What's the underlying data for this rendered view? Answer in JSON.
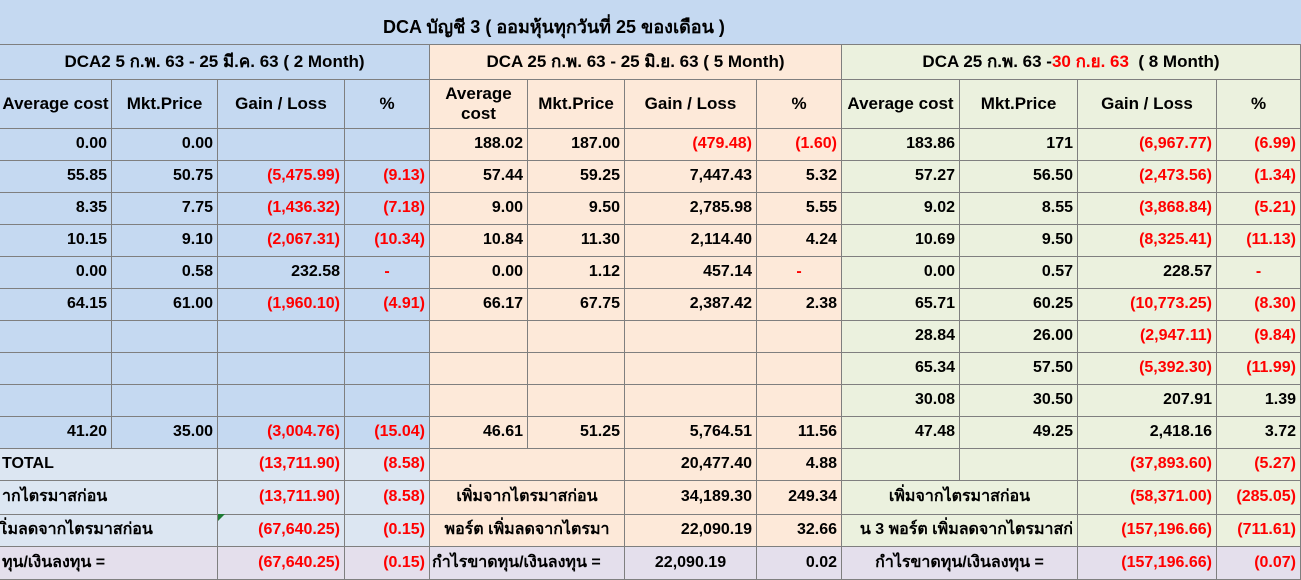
{
  "title": "DCA บัญชี 3  ( ออมหุ้นทุกวันที่  25 ของเดือน )",
  "sections": [
    {
      "prefix": "DCA2 5 ก.พ. 63 -  25 มี.ค. 63 ( 2 Month)",
      "highlight": "",
      "suffix": ""
    },
    {
      "prefix": "DCA 25 ก.พ. 63 -  25 มิ.ย. 63 ( 5 Month)",
      "highlight": "",
      "suffix": ""
    },
    {
      "prefix": "DCA 25 ก.พ. 63 - ",
      "highlight": "30 ก.ย. 63",
      "suffix": "  ( 8 Month)"
    }
  ],
  "headers": [
    "Average cost",
    "Mkt.Price",
    "Gain / Loss",
    "%"
  ],
  "rows": [
    [
      [
        "0.00",
        "0.00",
        "",
        ""
      ],
      [
        "188.02",
        "187.00",
        "(479.48)",
        "(1.60)"
      ],
      [
        "183.86",
        "171",
        "(6,967.77)",
        "(6.99)"
      ]
    ],
    [
      [
        "55.85",
        "50.75",
        "(5,475.99)",
        "(9.13)"
      ],
      [
        "57.44",
        "59.25",
        "7,447.43",
        "5.32"
      ],
      [
        "57.27",
        "56.50",
        "(2,473.56)",
        "(1.34)"
      ]
    ],
    [
      [
        "8.35",
        "7.75",
        "(1,436.32)",
        "(7.18)"
      ],
      [
        "9.00",
        "9.50",
        "2,785.98",
        "5.55"
      ],
      [
        "9.02",
        "8.55",
        "(3,868.84)",
        "(5.21)"
      ]
    ],
    [
      [
        "10.15",
        "9.10",
        "(2,067.31)",
        "(10.34)"
      ],
      [
        "10.84",
        "11.30",
        "2,114.40",
        "4.24"
      ],
      [
        "10.69",
        "9.50",
        "(8,325.41)",
        "(11.13)"
      ]
    ],
    [
      [
        "0.00",
        "0.58",
        "232.58",
        "-"
      ],
      [
        "0.00",
        "1.12",
        "457.14",
        "-"
      ],
      [
        "0.00",
        "0.57",
        "228.57",
        "-"
      ]
    ],
    [
      [
        "64.15",
        "61.00",
        "(1,960.10)",
        "(4.91)"
      ],
      [
        "66.17",
        "67.75",
        "2,387.42",
        "2.38"
      ],
      [
        "65.71",
        "60.25",
        "(10,773.25)",
        "(8.30)"
      ]
    ],
    [
      [
        "",
        "",
        "",
        ""
      ],
      [
        "",
        "",
        "",
        ""
      ],
      [
        "28.84",
        "26.00",
        "(2,947.11)",
        "(9.84)"
      ]
    ],
    [
      [
        "",
        "",
        "",
        ""
      ],
      [
        "",
        "",
        "",
        ""
      ],
      [
        "65.34",
        "57.50",
        "(5,392.30)",
        "(11.99)"
      ]
    ],
    [
      [
        "",
        "",
        "",
        ""
      ],
      [
        "",
        "",
        "",
        ""
      ],
      [
        "30.08",
        "30.50",
        "207.91",
        "1.39"
      ]
    ],
    [
      [
        "41.20",
        "35.00",
        "(3,004.76)",
        "(15.04)"
      ],
      [
        "46.61",
        "51.25",
        "5,764.51",
        "11.56"
      ],
      [
        "47.48",
        "49.25",
        "2,418.16",
        "3.72"
      ]
    ]
  ],
  "total_row": {
    "label": "TOTAL",
    "s1": [
      "(13,711.90)",
      "(8.58)"
    ],
    "s2": [
      "20,477.40",
      "4.88"
    ],
    "s3": [
      "(37,893.60)",
      "(5.27)"
    ]
  },
  "summary_rows": [
    {
      "label1": "ากไตรมาสก่อน",
      "s1": [
        "(13,711.90)",
        "(8.58)"
      ],
      "label2": "เพิ่มจากไตรมาสก่อน",
      "s2": [
        "34,189.30",
        "249.34"
      ],
      "label3": "เพิ่มจากไตรมาสก่อน",
      "s3": [
        "(58,371.00)",
        "(285.05)"
      ]
    },
    {
      "label1": "เิ่มลดจากไตรมาสก่อน",
      "s1": [
        "(67,640.25)",
        "(0.15)"
      ],
      "label2": "พอร์ต เพิ่มลดจากไตรมา",
      "s2": [
        "22,090.19",
        "32.66"
      ],
      "label3": "น 3 พอร์ต เพิ่มลดจากไตรมาสก่",
      "s3": [
        "(157,196.66)",
        "(711.61)"
      ]
    },
    {
      "label1": "ทุน/เงินลงทุน =",
      "s1": [
        "(67,640.25)",
        "(0.15)"
      ],
      "label2": "กำไรขาดทุน/เงินลงทุน =",
      "s2": [
        "22,090.19",
        "0.02"
      ],
      "label3": "กำไรขาดทุน/เงินลงทุน =",
      "s3": [
        "(157,196.66)",
        "(0.07)"
      ]
    }
  ],
  "colors": {
    "section1": "#c5d9f1",
    "section2": "#fde9d9",
    "section3": "#ebf1de",
    "negative": "#ff0000",
    "last_row": "#e4dfec"
  }
}
